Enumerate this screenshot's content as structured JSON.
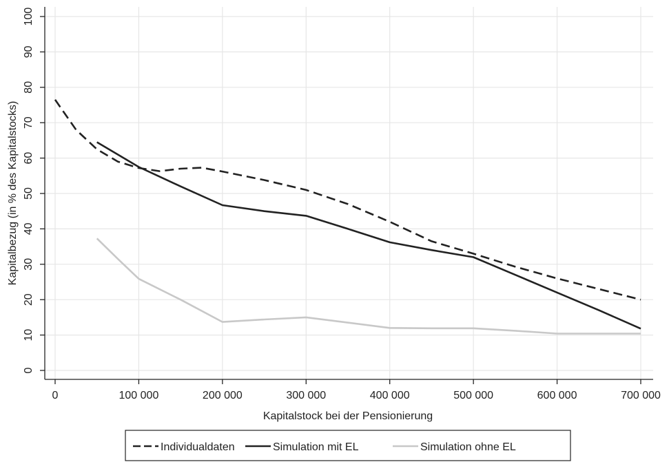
{
  "chart_data": {
    "type": "line",
    "title": "",
    "xlabel": "Kapitalstock bei der Pensionierung",
    "ylabel": "Kapitalbezug (in % des Kapitalstocks)",
    "xlim": [
      0,
      700000
    ],
    "ylim": [
      0,
      100
    ],
    "x_ticks": [
      0,
      100000,
      200000,
      300000,
      400000,
      500000,
      600000,
      700000
    ],
    "x_tick_labels": [
      "0",
      "100 000",
      "200 000",
      "300 000",
      "400 000",
      "500 000",
      "600 000",
      "700 000"
    ],
    "y_ticks": [
      0,
      10,
      20,
      30,
      40,
      50,
      60,
      70,
      80,
      90,
      100
    ],
    "y_tick_labels": [
      "0",
      "10",
      "20",
      "30",
      "40",
      "50",
      "60",
      "70",
      "80",
      "90",
      "100"
    ],
    "grid": true,
    "legend_position": "bottom",
    "series": [
      {
        "name": "Individualdaten",
        "style": "dashed",
        "color": "#222222",
        "x": [
          0,
          25000,
          50000,
          75000,
          100000,
          125000,
          150000,
          175000,
          200000,
          250000,
          300000,
          350000,
          400000,
          450000,
          500000,
          550000,
          600000,
          650000,
          700000
        ],
        "y": [
          76.5,
          68,
          62.5,
          59,
          57.2,
          56.3,
          57.0,
          57.3,
          56.2,
          53.8,
          51.0,
          47.0,
          42.0,
          36.5,
          33.0,
          29.3,
          26.0,
          23.0,
          20.0
        ]
      },
      {
        "name": "Simulation mit EL",
        "style": "solid",
        "color": "#222222",
        "x": [
          50000,
          75000,
          100000,
          150000,
          200000,
          250000,
          300000,
          350000,
          400000,
          450000,
          500000,
          550000,
          600000,
          650000,
          700000
        ],
        "y": [
          64.5,
          61,
          57.5,
          52,
          46.7,
          45.0,
          43.7,
          40.0,
          36.2,
          34.0,
          32.0,
          27.0,
          22.0,
          17.0,
          11.8
        ]
      },
      {
        "name": "Simulation ohne EL",
        "style": "solid",
        "color": "#c8c8c8",
        "x": [
          50000,
          75000,
          100000,
          150000,
          200000,
          250000,
          300000,
          350000,
          400000,
          450000,
          500000,
          550000,
          600000,
          650000,
          700000
        ],
        "y": [
          37.3,
          31.5,
          25.9,
          20.0,
          13.7,
          14.4,
          15.0,
          13.5,
          12.0,
          11.9,
          11.9,
          11.2,
          10.4,
          10.4,
          10.4
        ]
      }
    ]
  }
}
